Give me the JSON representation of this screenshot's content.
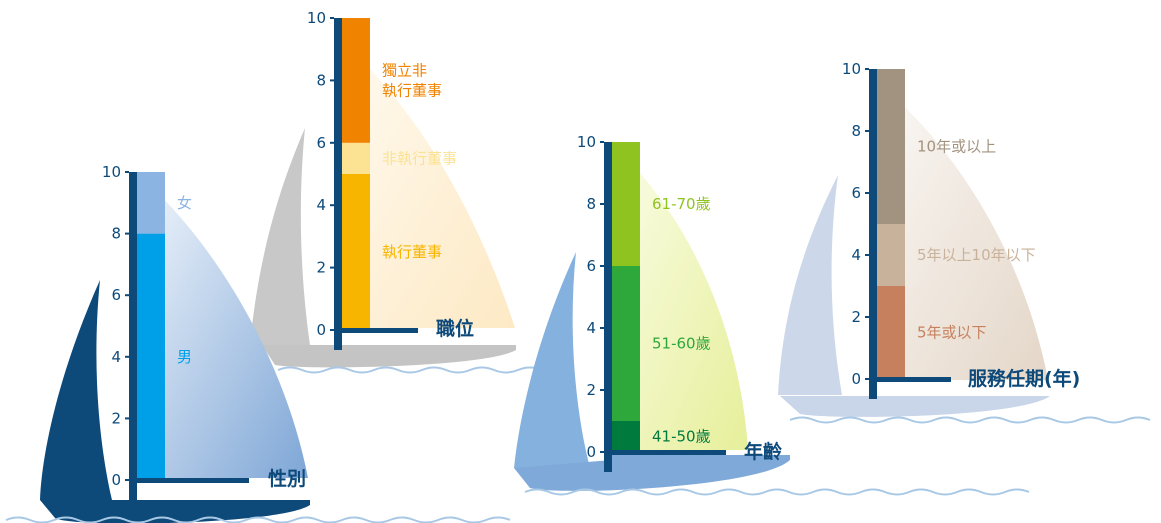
{
  "chart_data": [
    {
      "type": "bar",
      "stacked": true,
      "title": "性別",
      "ylim": [
        0,
        10
      ],
      "yticks": [
        0,
        2,
        4,
        6,
        8,
        10
      ],
      "segments": [
        {
          "label": "男",
          "value": 8,
          "color": "#00a0e9"
        },
        {
          "label": "女",
          "value": 2,
          "color": "#8cb4e2"
        }
      ]
    },
    {
      "type": "bar",
      "stacked": true,
      "title": "職位",
      "ylim": [
        0,
        10
      ],
      "yticks": [
        0,
        2,
        4,
        6,
        8,
        10
      ],
      "segments": [
        {
          "label": "執行董事",
          "value": 5,
          "color": "#f8b500"
        },
        {
          "label": "非執行董事",
          "value": 1,
          "color": "#fce293"
        },
        {
          "label": "獨立非執行董事",
          "label_lines": [
            "獨立非",
            "執行董事"
          ],
          "value": 4,
          "color": "#f08300"
        }
      ]
    },
    {
      "type": "bar",
      "stacked": true,
      "title": "年齡",
      "ylim": [
        0,
        10
      ],
      "yticks": [
        0,
        2,
        4,
        6,
        8,
        10
      ],
      "segments": [
        {
          "label": "41-50歲",
          "value": 1,
          "color": "#007a3d"
        },
        {
          "label": "51-60歲",
          "value": 5,
          "color": "#2ea83b"
        },
        {
          "label": "61-70歲",
          "value": 4,
          "color": "#8fc31f"
        }
      ]
    },
    {
      "type": "bar",
      "stacked": true,
      "title": "服務任期(年)",
      "ylim": [
        0,
        10
      ],
      "yticks": [
        0,
        2,
        4,
        6,
        8,
        10
      ],
      "segments": [
        {
          "label": "5年或以下",
          "value": 3,
          "color": "#c7805d"
        },
        {
          "label": "5年以上10年以下",
          "value": 2,
          "color": "#c8b29b"
        },
        {
          "label": "10年或以上",
          "value": 5,
          "color": "#a29380"
        }
      ]
    }
  ],
  "colors": {
    "mast": "#0d4a7a",
    "tick_text": "#0d4a7a",
    "title_text": "#0d4a7a",
    "wave": "#a8c8e6"
  }
}
